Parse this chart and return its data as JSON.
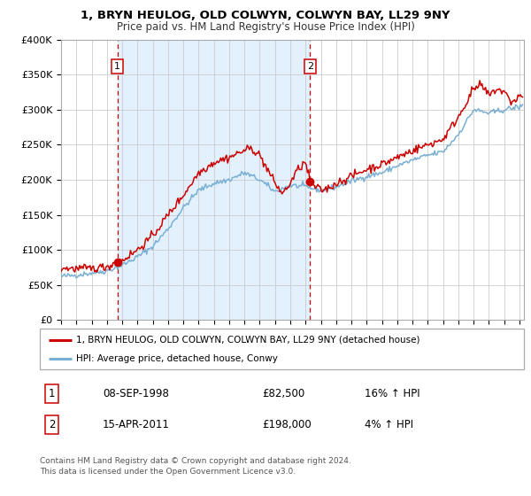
{
  "title": "1, BRYN HEULOG, OLD COLWYN, COLWYN BAY, LL29 9NY",
  "subtitle": "Price paid vs. HM Land Registry's House Price Index (HPI)",
  "ylim": [
    0,
    400000
  ],
  "xlim_start": 1995.0,
  "xlim_end": 2025.3,
  "sale1_date": 1998.69,
  "sale1_price": 82500,
  "sale2_date": 2011.29,
  "sale2_price": 198000,
  "red_line_color": "#cc0000",
  "blue_line_color": "#7ab0d4",
  "vline_color": "#cc0000",
  "bg_shade_color": "#ddeeff",
  "grid_color": "#cccccc",
  "legend_label_red": "1, BRYN HEULOG, OLD COLWYN, COLWYN BAY, LL29 9NY (detached house)",
  "legend_label_blue": "HPI: Average price, detached house, Conwy",
  "annotation1_date": "08-SEP-1998",
  "annotation1_price": "£82,500",
  "annotation1_hpi": "16% ↑ HPI",
  "annotation2_date": "15-APR-2011",
  "annotation2_price": "£198,000",
  "annotation2_hpi": "4% ↑ HPI",
  "footer_text": "Contains HM Land Registry data © Crown copyright and database right 2024.\nThis data is licensed under the Open Government Licence v3.0.",
  "box_label1": "1",
  "box_label2": "2",
  "ytick_labels": [
    "£0",
    "£50K",
    "£100K",
    "£150K",
    "£200K",
    "£250K",
    "£300K",
    "£350K",
    "£400K"
  ],
  "ytick_values": [
    0,
    50000,
    100000,
    150000,
    200000,
    250000,
    300000,
    350000,
    400000
  ]
}
